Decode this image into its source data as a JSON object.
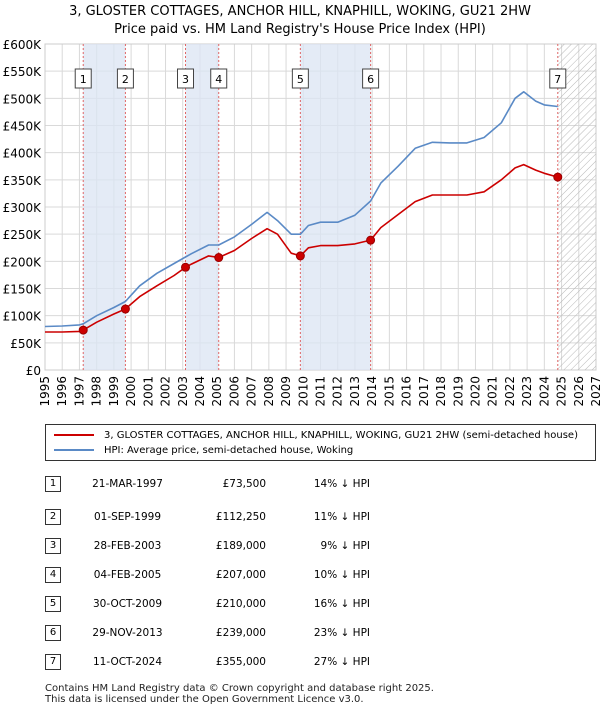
{
  "header": {
    "title_line1": "3, GLOSTER COTTAGES, ANCHOR HILL, KNAPHILL, WOKING, GU21 2HW",
    "title_line2": "Price paid vs. HM Land Registry's House Price Index (HPI)"
  },
  "chart_data": {
    "type": "line",
    "xlim": [
      1995,
      2027
    ],
    "ylim": [
      0,
      600000
    ],
    "x_ticks": [
      "1995",
      "1996",
      "1997",
      "1998",
      "1999",
      "2000",
      "2001",
      "2002",
      "2003",
      "2004",
      "2005",
      "2006",
      "2007",
      "2008",
      "2009",
      "2010",
      "2011",
      "2012",
      "2013",
      "2014",
      "2015",
      "2016",
      "2017",
      "2018",
      "2019",
      "2020",
      "2021",
      "2022",
      "2023",
      "2024",
      "2025",
      "2026",
      "2027"
    ],
    "y_ticks": [
      {
        "value": 0,
        "label": "£0"
      },
      {
        "value": 50000,
        "label": "£50K"
      },
      {
        "value": 100000,
        "label": "£100K"
      },
      {
        "value": 150000,
        "label": "£150K"
      },
      {
        "value": 200000,
        "label": "£200K"
      },
      {
        "value": 250000,
        "label": "£250K"
      },
      {
        "value": 300000,
        "label": "£300K"
      },
      {
        "value": 350000,
        "label": "£350K"
      },
      {
        "value": 400000,
        "label": "£400K"
      },
      {
        "value": 450000,
        "label": "£450K"
      },
      {
        "value": 500000,
        "label": "£500K"
      },
      {
        "value": 550000,
        "label": "£550K"
      },
      {
        "value": 600000,
        "label": "£600K"
      }
    ],
    "future_shade_from": 2024.79,
    "grid": true,
    "series": [
      {
        "name": "3, GLOSTER COTTAGES, ANCHOR HILL, KNAPHILL, WOKING, GU21 2HW (semi-detached house)",
        "color": "#cc0000",
        "x": [
          1995.0,
          1996.0,
          1997.0,
          1997.22,
          1998.0,
          1999.0,
          1999.67,
          2000.5,
          2001.5,
          2002.5,
          2003.16,
          2003.5,
          2004.5,
          2005.09,
          2006.0,
          2007.0,
          2007.9,
          2008.5,
          2009.3,
          2009.83,
          2010.3,
          2011.0,
          2012.0,
          2013.0,
          2013.91,
          2014.5,
          2015.5,
          2016.5,
          2017.5,
          2018.5,
          2019.5,
          2020.5,
          2021.5,
          2022.3,
          2022.8,
          2023.5,
          2024.0,
          2024.78
        ],
        "y": [
          70000,
          70000,
          71000,
          73500,
          88000,
          103000,
          112250,
          135000,
          155000,
          174000,
          189000,
          195000,
          210000,
          207000,
          220000,
          242000,
          260000,
          250000,
          215000,
          210000,
          225000,
          229000,
          229000,
          232000,
          239000,
          262000,
          286000,
          310000,
          322000,
          322000,
          322000,
          328000,
          350000,
          372000,
          378000,
          368000,
          362000,
          355000
        ]
      },
      {
        "name": "HPI: Average price, semi-detached house, Woking",
        "color": "#5a8ac6",
        "x": [
          1995.0,
          1996.0,
          1997.0,
          1997.22,
          1998.0,
          1999.0,
          1999.67,
          2000.5,
          2001.5,
          2002.5,
          2003.16,
          2003.5,
          2004.5,
          2005.09,
          2006.0,
          2007.0,
          2007.9,
          2008.5,
          2009.3,
          2009.83,
          2010.3,
          2011.0,
          2012.0,
          2013.0,
          2013.91,
          2014.5,
          2015.5,
          2016.5,
          2017.5,
          2018.5,
          2019.5,
          2020.5,
          2021.5,
          2022.3,
          2022.8,
          2023.5,
          2024.0,
          2024.78
        ],
        "y": [
          80000,
          81000,
          83000,
          85000,
          100000,
          115000,
          126000,
          155000,
          178000,
          196000,
          208000,
          214000,
          230000,
          230000,
          245000,
          268000,
          290000,
          275000,
          250000,
          250000,
          266000,
          272000,
          272000,
          285000,
          311000,
          344000,
          375000,
          408000,
          419000,
          418000,
          418000,
          428000,
          455000,
          500000,
          512000,
          495000,
          488000,
          485000
        ]
      }
    ],
    "sales": [
      {
        "n": "1",
        "x": 1997.22,
        "y": 73500
      },
      {
        "n": "2",
        "x": 1999.67,
        "y": 112250
      },
      {
        "n": "3",
        "x": 2003.16,
        "y": 189000
      },
      {
        "n": "4",
        "x": 2005.09,
        "y": 207000
      },
      {
        "n": "5",
        "x": 2009.83,
        "y": 210000
      },
      {
        "n": "6",
        "x": 2013.91,
        "y": 239000
      },
      {
        "n": "7",
        "x": 2024.78,
        "y": 355000
      }
    ]
  },
  "legend": {
    "property_label": "3, GLOSTER COTTAGES, ANCHOR HILL, KNAPHILL, WOKING, GU21 2HW (semi-detached house)",
    "hpi_label": "HPI: Average price, semi-detached house, Woking"
  },
  "table": {
    "rows": [
      {
        "n": "1",
        "date": "21-MAR-1997",
        "price": "£73,500",
        "hpi": "14% ↓ HPI"
      },
      {
        "n": "2",
        "date": "01-SEP-1999",
        "price": "£112,250",
        "hpi": "11% ↓ HPI"
      },
      {
        "n": "3",
        "date": "28-FEB-2003",
        "price": "£189,000",
        "hpi": "9% ↓ HPI"
      },
      {
        "n": "4",
        "date": "04-FEB-2005",
        "price": "£207,000",
        "hpi": "10% ↓ HPI"
      },
      {
        "n": "5",
        "date": "30-OCT-2009",
        "price": "£210,000",
        "hpi": "16% ↓ HPI"
      },
      {
        "n": "6",
        "date": "29-NOV-2013",
        "price": "£239,000",
        "hpi": "23% ↓ HPI"
      },
      {
        "n": "7",
        "date": "11-OCT-2024",
        "price": "£355,000",
        "hpi": "27% ↓ HPI"
      }
    ]
  },
  "footer": {
    "line1": "Contains HM Land Registry data © Crown copyright and database right 2025.",
    "line2": "This data is licensed under the Open Government Licence v3.0."
  }
}
